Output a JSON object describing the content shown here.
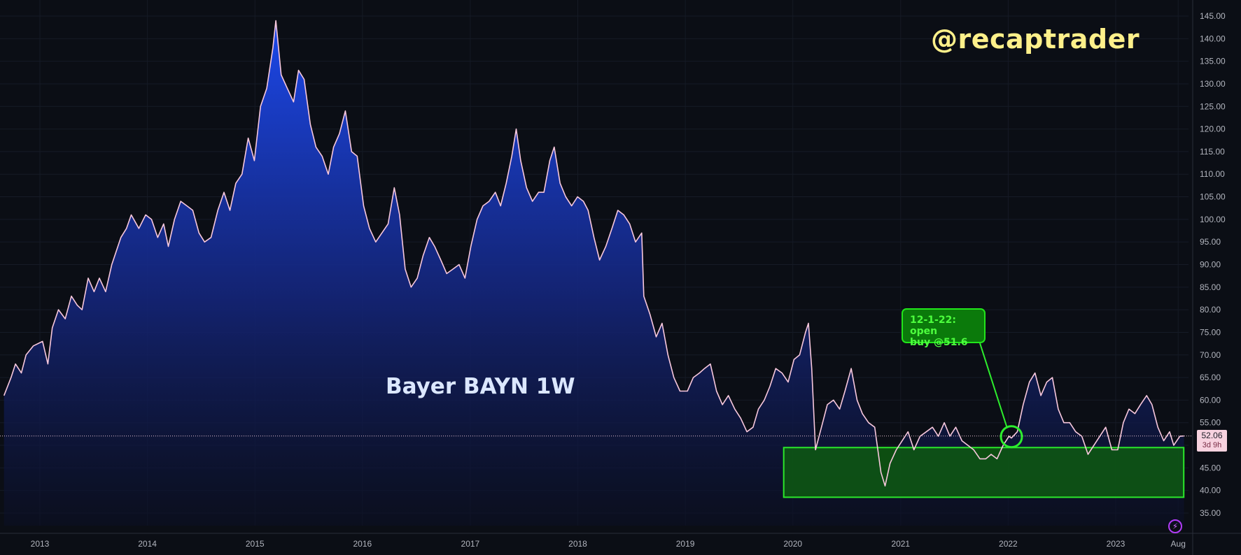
{
  "watermark": "@recaptrader",
  "title": "Bayer BAYN 1W",
  "annotation": {
    "line1": "12-1-22: open",
    "line2": "buy @51.6"
  },
  "last_price": {
    "value": "52.06",
    "countdown": "3d 9h"
  },
  "icons": {
    "replay": "lightning-icon"
  },
  "colors": {
    "background": "#0b0e15",
    "line": "#f8c8dd",
    "area_top": "#1c49f0",
    "area_bottom": "#0b0f24",
    "zone_fill": "#0d5d11",
    "zone_border": "#2be82b",
    "axis_text": "#b2b5be",
    "watermark": "#fef08a"
  },
  "chart_data": {
    "type": "area",
    "symbol": "BAYN",
    "interval": "1W",
    "title": "Bayer BAYN 1W",
    "xlabel": "",
    "ylabel": "",
    "x_ticks": [
      "2013",
      "2014",
      "2015",
      "2016",
      "2017",
      "2018",
      "2019",
      "2020",
      "2021",
      "2022",
      "2023",
      "Aug"
    ],
    "y_ticks": [
      "35.00",
      "40.00",
      "45.00",
      "50.00",
      "55.00",
      "60.00",
      "65.00",
      "70.00",
      "75.00",
      "80.00",
      "85.00",
      "90.00",
      "95.00",
      "100.00",
      "105.00",
      "110.00",
      "115.00",
      "120.00",
      "125.00",
      "130.00",
      "135.00",
      "140.00",
      "145.00"
    ],
    "ylim": [
      33,
      147
    ],
    "xlim": [
      "2012-08-27",
      "2023-08-27"
    ],
    "grid": true,
    "last_value": 52.06,
    "series": [
      {
        "values": [
          [
            "2012-09-01",
            61
          ],
          [
            "2012-09-25",
            65
          ],
          [
            "2012-10-10",
            68
          ],
          [
            "2012-10-30",
            66
          ],
          [
            "2012-11-15",
            70
          ],
          [
            "2012-12-10",
            72
          ],
          [
            "2013-01-10",
            73
          ],
          [
            "2013-01-28",
            68
          ],
          [
            "2013-02-12",
            76
          ],
          [
            "2013-03-05",
            80
          ],
          [
            "2013-03-28",
            78
          ],
          [
            "2013-04-18",
            83
          ],
          [
            "2013-05-08",
            81
          ],
          [
            "2013-05-24",
            80
          ],
          [
            "2013-06-14",
            87
          ],
          [
            "2013-07-04",
            84
          ],
          [
            "2013-07-22",
            87
          ],
          [
            "2013-08-12",
            84
          ],
          [
            "2013-09-02",
            90
          ],
          [
            "2013-10-03",
            96
          ],
          [
            "2013-10-22",
            98
          ],
          [
            "2013-11-07",
            101
          ],
          [
            "2013-12-03",
            98
          ],
          [
            "2013-12-26",
            101
          ],
          [
            "2014-01-15",
            100
          ],
          [
            "2014-02-05",
            96
          ],
          [
            "2014-02-25",
            99
          ],
          [
            "2014-03-13",
            94
          ],
          [
            "2014-04-03",
            100
          ],
          [
            "2014-04-24",
            104
          ],
          [
            "2014-05-15",
            103
          ],
          [
            "2014-06-04",
            102
          ],
          [
            "2014-06-25",
            97
          ],
          [
            "2014-07-14",
            95
          ],
          [
            "2014-08-05",
            96
          ],
          [
            "2014-08-28",
            102
          ],
          [
            "2014-09-18",
            106
          ],
          [
            "2014-10-08",
            102
          ],
          [
            "2014-10-28",
            108
          ],
          [
            "2014-11-18",
            110
          ],
          [
            "2014-12-09",
            118
          ],
          [
            "2014-12-30",
            113
          ],
          [
            "2015-01-20",
            125
          ],
          [
            "2015-02-10",
            129
          ],
          [
            "2015-03-03",
            138
          ],
          [
            "2015-03-13",
            144
          ],
          [
            "2015-03-31",
            132
          ],
          [
            "2015-04-21",
            129
          ],
          [
            "2015-05-12",
            126
          ],
          [
            "2015-05-29",
            133
          ],
          [
            "2015-06-17",
            131
          ],
          [
            "2015-07-08",
            121
          ],
          [
            "2015-07-27",
            116
          ],
          [
            "2015-08-17",
            114
          ],
          [
            "2015-09-07",
            110
          ],
          [
            "2015-09-25",
            116
          ],
          [
            "2015-10-15",
            119
          ],
          [
            "2015-11-04",
            124
          ],
          [
            "2015-11-25",
            115
          ],
          [
            "2015-12-14",
            114
          ],
          [
            "2016-01-05",
            103
          ],
          [
            "2016-01-25",
            98
          ],
          [
            "2016-02-15",
            95
          ],
          [
            "2016-03-07",
            97
          ],
          [
            "2016-03-28",
            99
          ],
          [
            "2016-04-18",
            107
          ],
          [
            "2016-05-06",
            101
          ],
          [
            "2016-05-25",
            89
          ],
          [
            "2016-06-14",
            85
          ],
          [
            "2016-07-05",
            87
          ],
          [
            "2016-07-25",
            92
          ],
          [
            "2016-08-15",
            96
          ],
          [
            "2016-09-02",
            94
          ],
          [
            "2016-09-23",
            91
          ],
          [
            "2016-10-13",
            88
          ],
          [
            "2016-11-03",
            89
          ],
          [
            "2016-11-24",
            90
          ],
          [
            "2016-12-14",
            87
          ],
          [
            "2017-01-03",
            94
          ],
          [
            "2017-01-24",
            100
          ],
          [
            "2017-02-13",
            103
          ],
          [
            "2017-03-06",
            104
          ],
          [
            "2017-03-27",
            106
          ],
          [
            "2017-04-14",
            103
          ],
          [
            "2017-05-03",
            108
          ],
          [
            "2017-05-22",
            114
          ],
          [
            "2017-06-06",
            120
          ],
          [
            "2017-06-21",
            113
          ],
          [
            "2017-07-11",
            107
          ],
          [
            "2017-07-31",
            104
          ],
          [
            "2017-08-21",
            106
          ],
          [
            "2017-09-08",
            106
          ],
          [
            "2017-09-28",
            113
          ],
          [
            "2017-10-13",
            116
          ],
          [
            "2017-11-02",
            108
          ],
          [
            "2017-11-21",
            105
          ],
          [
            "2017-12-11",
            103
          ],
          [
            "2017-12-31",
            105
          ],
          [
            "2018-01-20",
            104
          ],
          [
            "2018-02-05",
            102
          ],
          [
            "2018-02-25",
            96
          ],
          [
            "2018-03-16",
            91
          ],
          [
            "2018-04-06",
            94
          ],
          [
            "2018-04-27",
            98
          ],
          [
            "2018-05-17",
            102
          ],
          [
            "2018-06-06",
            101
          ],
          [
            "2018-06-26",
            99
          ],
          [
            "2018-07-16",
            95
          ],
          [
            "2018-08-06",
            97
          ],
          [
            "2018-08-13",
            83
          ],
          [
            "2018-09-03",
            79
          ],
          [
            "2018-09-24",
            74
          ],
          [
            "2018-10-14",
            77
          ],
          [
            "2018-11-03",
            70
          ],
          [
            "2018-11-23",
            65
          ],
          [
            "2018-12-14",
            62
          ],
          [
            "2019-01-08",
            62
          ],
          [
            "2019-01-28",
            65
          ],
          [
            "2019-02-18",
            66
          ],
          [
            "2019-03-07",
            67
          ],
          [
            "2019-03-27",
            68
          ],
          [
            "2019-04-17",
            62
          ],
          [
            "2019-05-07",
            59
          ],
          [
            "2019-05-27",
            61
          ],
          [
            "2019-06-18",
            58
          ],
          [
            "2019-07-08",
            56
          ],
          [
            "2019-07-29",
            53
          ],
          [
            "2019-08-19",
            54
          ],
          [
            "2019-09-06",
            58
          ],
          [
            "2019-09-26",
            60
          ],
          [
            "2019-10-15",
            63
          ],
          [
            "2019-11-04",
            67
          ],
          [
            "2019-11-25",
            66
          ],
          [
            "2019-12-16",
            64
          ],
          [
            "2020-01-05",
            69
          ],
          [
            "2020-01-24",
            70
          ],
          [
            "2020-02-13",
            75
          ],
          [
            "2020-02-23",
            77
          ],
          [
            "2020-03-05",
            67
          ],
          [
            "2020-03-18",
            49
          ],
          [
            "2020-04-07",
            54
          ],
          [
            "2020-04-27",
            59
          ],
          [
            "2020-05-18",
            60
          ],
          [
            "2020-06-08",
            58
          ],
          [
            "2020-06-26",
            62
          ],
          [
            "2020-07-17",
            67
          ],
          [
            "2020-08-06",
            60
          ],
          [
            "2020-08-24",
            57
          ],
          [
            "2020-09-14",
            55
          ],
          [
            "2020-10-05",
            54
          ],
          [
            "2020-10-26",
            44
          ],
          [
            "2020-11-09",
            41
          ],
          [
            "2020-11-26",
            46
          ],
          [
            "2020-12-17",
            49
          ],
          [
            "2021-01-06",
            51
          ],
          [
            "2021-01-26",
            53
          ],
          [
            "2021-02-15",
            49
          ],
          [
            "2021-03-08",
            52
          ],
          [
            "2021-03-29",
            53
          ],
          [
            "2021-04-19",
            54
          ],
          [
            "2021-05-09",
            52
          ],
          [
            "2021-05-29",
            55
          ],
          [
            "2021-06-17",
            52
          ],
          [
            "2021-07-07",
            54
          ],
          [
            "2021-07-28",
            51
          ],
          [
            "2021-08-17",
            50
          ],
          [
            "2021-09-06",
            49
          ],
          [
            "2021-09-27",
            47
          ],
          [
            "2021-10-17",
            47
          ],
          [
            "2021-11-04",
            48
          ],
          [
            "2021-11-24",
            47
          ],
          [
            "2021-12-15",
            50
          ],
          [
            "2022-01-04",
            52
          ],
          [
            "2022-01-12",
            51.6
          ],
          [
            "2022-02-01",
            53
          ],
          [
            "2022-02-21",
            59
          ],
          [
            "2022-03-14",
            64
          ],
          [
            "2022-04-02",
            66
          ],
          [
            "2022-04-22",
            61
          ],
          [
            "2022-05-12",
            64
          ],
          [
            "2022-05-31",
            65
          ],
          [
            "2022-06-20",
            58
          ],
          [
            "2022-07-09",
            55
          ],
          [
            "2022-07-29",
            55
          ],
          [
            "2022-08-18",
            53
          ],
          [
            "2022-09-08",
            52
          ],
          [
            "2022-09-29",
            48
          ],
          [
            "2022-10-19",
            50
          ],
          [
            "2022-11-08",
            52
          ],
          [
            "2022-11-28",
            54
          ],
          [
            "2022-12-19",
            49
          ],
          [
            "2023-01-08",
            49
          ],
          [
            "2023-01-27",
            55
          ],
          [
            "2023-02-15",
            58
          ],
          [
            "2023-03-07",
            57
          ],
          [
            "2023-03-26",
            59
          ],
          [
            "2023-04-16",
            61
          ],
          [
            "2023-05-04",
            59
          ],
          [
            "2023-05-24",
            54
          ],
          [
            "2023-06-13",
            51
          ],
          [
            "2023-07-03",
            53
          ],
          [
            "2023-07-17",
            50
          ],
          [
            "2023-08-07",
            52
          ],
          [
            "2023-08-21",
            52.06
          ]
        ]
      }
    ],
    "zones": [
      {
        "label": "",
        "x0": "2019-12-01",
        "x1": "2023-08-20",
        "y0": 38.5,
        "y1": 49.5
      }
    ],
    "markers": [
      {
        "x": "2022-01-12",
        "y": 51.6,
        "shape": "circle"
      }
    ]
  }
}
